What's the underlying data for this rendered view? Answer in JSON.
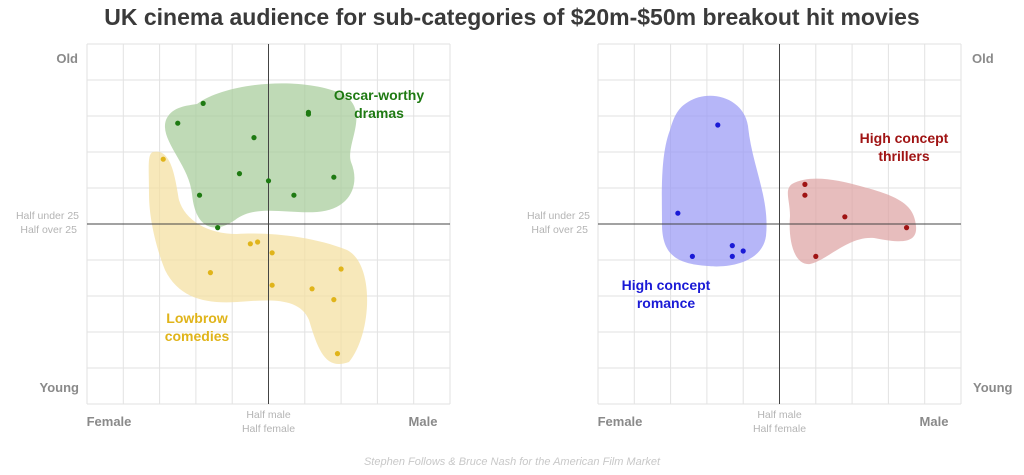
{
  "title": "UK cinema audience for sub-categories of $20m-$50m breakout hit movies",
  "footer": "Stephen Follows & Bruce Nash for the American Film Market",
  "axis_labels": {
    "old": "Old",
    "young": "Young",
    "female": "Female",
    "male": "Male",
    "mid_y_top": "Half under 25",
    "mid_y_bottom": "Half over 25",
    "mid_x_top": "Half male",
    "mid_x_bottom": "Half female"
  },
  "colors": {
    "oscar": "#1e7a12",
    "oscar_fill": "#a6cc9a",
    "lowbrow": "#e0b41a",
    "lowbrow_fill": "#f4dfa0",
    "romance": "#1a1ad6",
    "romance_fill": "#9a9af5",
    "thriller": "#a01414",
    "thriller_fill": "#dea4a4",
    "axis_text": "#8a8a8a",
    "mid_text": "#b4b4b4",
    "grid": "#e2e2e2"
  },
  "chart_data": [
    {
      "type": "scatter",
      "title": "",
      "xlabel": "",
      "ylabel": "",
      "xlim": [
        -1,
        1
      ],
      "ylim": [
        -1,
        1
      ],
      "grid": true,
      "series": [
        {
          "name": "Oscar-worthy dramas",
          "color_key": "oscar",
          "points": [
            [
              -0.36,
              0.67
            ],
            [
              -0.5,
              0.56
            ],
            [
              -0.08,
              0.48
            ],
            [
              0.22,
              0.61
            ],
            [
              0.22,
              0.62
            ],
            [
              -0.16,
              0.28
            ],
            [
              0.0,
              0.24
            ],
            [
              -0.38,
              0.16
            ],
            [
              0.14,
              0.16
            ],
            [
              0.36,
              0.26
            ],
            [
              -0.28,
              -0.02
            ]
          ]
        },
        {
          "name": "Lowbrow comedies",
          "color_key": "lowbrow",
          "points": [
            [
              -0.58,
              0.36
            ],
            [
              -0.1,
              -0.11
            ],
            [
              -0.06,
              -0.1
            ],
            [
              0.02,
              -0.16
            ],
            [
              -0.32,
              -0.27
            ],
            [
              0.4,
              -0.25
            ],
            [
              0.02,
              -0.34
            ],
            [
              0.24,
              -0.36
            ],
            [
              0.36,
              -0.42
            ],
            [
              0.38,
              -0.72
            ]
          ]
        }
      ]
    },
    {
      "type": "scatter",
      "title": "",
      "xlabel": "",
      "ylabel": "",
      "xlim": [
        -1,
        1
      ],
      "ylim": [
        -1,
        1
      ],
      "grid": true,
      "series": [
        {
          "name": "High concept romance",
          "color_key": "romance",
          "points": [
            [
              -0.34,
              0.55
            ],
            [
              -0.56,
              0.06
            ],
            [
              -0.2,
              -0.15
            ],
            [
              -0.26,
              -0.12
            ],
            [
              -0.48,
              -0.18
            ],
            [
              -0.26,
              -0.18
            ]
          ]
        },
        {
          "name": "High concept thrillers",
          "color_key": "thriller",
          "points": [
            [
              0.14,
              0.22
            ],
            [
              0.14,
              0.16
            ],
            [
              0.36,
              0.04
            ],
            [
              0.7,
              -0.02
            ],
            [
              0.2,
              -0.18
            ]
          ]
        }
      ]
    }
  ]
}
